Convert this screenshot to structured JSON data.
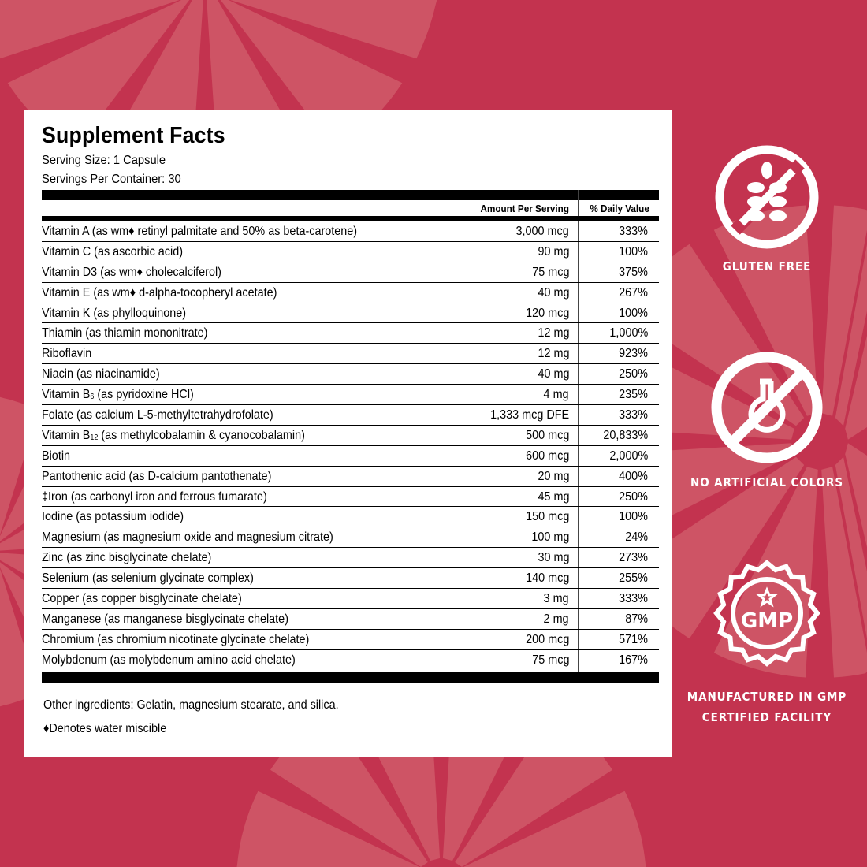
{
  "colors": {
    "background": "#c3334f",
    "pattern": "#d05a68",
    "panel": "#ffffff",
    "text": "#000000",
    "badge": "#ffffff"
  },
  "facts": {
    "title": "Supplement Facts",
    "serving_size": "Serving Size: 1 Capsule",
    "servings_per_container": "Servings Per Container: 30",
    "col_amount": "Amount Per Serving",
    "col_dv": "% Daily Value",
    "rows": [
      {
        "name": "Vitamin A (as wm♦ retinyl palmitate and 50% as beta-carotene)",
        "amount": "3,000 mcg",
        "dv": "333%"
      },
      {
        "name": "Vitamin C (as ascorbic acid)",
        "amount": "90 mg",
        "dv": "100%"
      },
      {
        "name": "Vitamin D3 (as wm♦ cholecalciferol)",
        "amount": "75 mcg",
        "dv": "375%"
      },
      {
        "name": "Vitamin E (as wm♦ d-alpha-tocopheryl acetate)",
        "amount": "40 mg",
        "dv": "267%"
      },
      {
        "name": "Vitamin K (as phylloquinone)",
        "amount": "120 mcg",
        "dv": "100%"
      },
      {
        "name": "Thiamin (as thiamin mononitrate)",
        "amount": "12 mg",
        "dv": "1,000%"
      },
      {
        "name": "Riboflavin",
        "amount": "12 mg",
        "dv": "923%"
      },
      {
        "name": "Niacin (as niacinamide)",
        "amount": "40 mg",
        "dv": "250%"
      },
      {
        "name": "Vitamin B",
        "sub": "6",
        "rest": " (as pyridoxine HCl)",
        "amount": "4 mg",
        "dv": "235%"
      },
      {
        "name": "Folate (as calcium L-5-methyltetrahydrofolate)",
        "amount": "1,333 mcg DFE",
        "dv": "333%"
      },
      {
        "name": "Vitamin B",
        "sub": "12",
        "rest": " (as methylcobalamin & cyanocobalamin)",
        "amount": "500 mcg",
        "dv": "20,833%"
      },
      {
        "name": "Biotin",
        "amount": "600 mcg",
        "dv": "2,000%"
      },
      {
        "name": "Pantothenic acid (as D-calcium pantothenate)",
        "amount": "20 mg",
        "dv": "400%"
      },
      {
        "name": "‡Iron (as carbonyl iron and ferrous fumarate)",
        "amount": "45 mg",
        "dv": "250%"
      },
      {
        "name": "Iodine (as potassium iodide)",
        "amount": "150 mcg",
        "dv": "100%"
      },
      {
        "name": "Magnesium (as magnesium oxide and magnesium citrate)",
        "amount": "100 mg",
        "dv": "24%"
      },
      {
        "name": "Zinc (as zinc bisglycinate chelate)",
        "amount": "30 mg",
        "dv": "273%"
      },
      {
        "name": "Selenium (as selenium glycinate complex)",
        "amount": "140 mcg",
        "dv": "255%"
      },
      {
        "name": "Copper (as copper bisglycinate chelate)",
        "amount": "3 mg",
        "dv": "333%"
      },
      {
        "name": "Manganese (as manganese bisglycinate chelate)",
        "amount": "2 mg",
        "dv": "87%"
      },
      {
        "name": "Chromium (as chromium nicotinate glycinate chelate)",
        "amount": "200 mcg",
        "dv": "571%"
      },
      {
        "name": "Molybdenum (as molybdenum amino acid chelate)",
        "amount": "75 mcg",
        "dv": "167%"
      }
    ],
    "other_ingredients": "Other ingredients: Gelatin, magnesium stearate, and silica.",
    "footnote": "♦Denotes water miscible"
  },
  "badges": [
    {
      "icon": "gluten-free-icon",
      "label": "GLUTEN FREE"
    },
    {
      "icon": "no-artificial-colors-icon",
      "label": "NO ARTIFICIAL COLORS"
    },
    {
      "icon": "gmp-seal-icon",
      "seal_text": "GMP",
      "label_line1": "MANUFACTURED IN GMP",
      "label_line2": "CERTIFIED FACILITY"
    }
  ]
}
